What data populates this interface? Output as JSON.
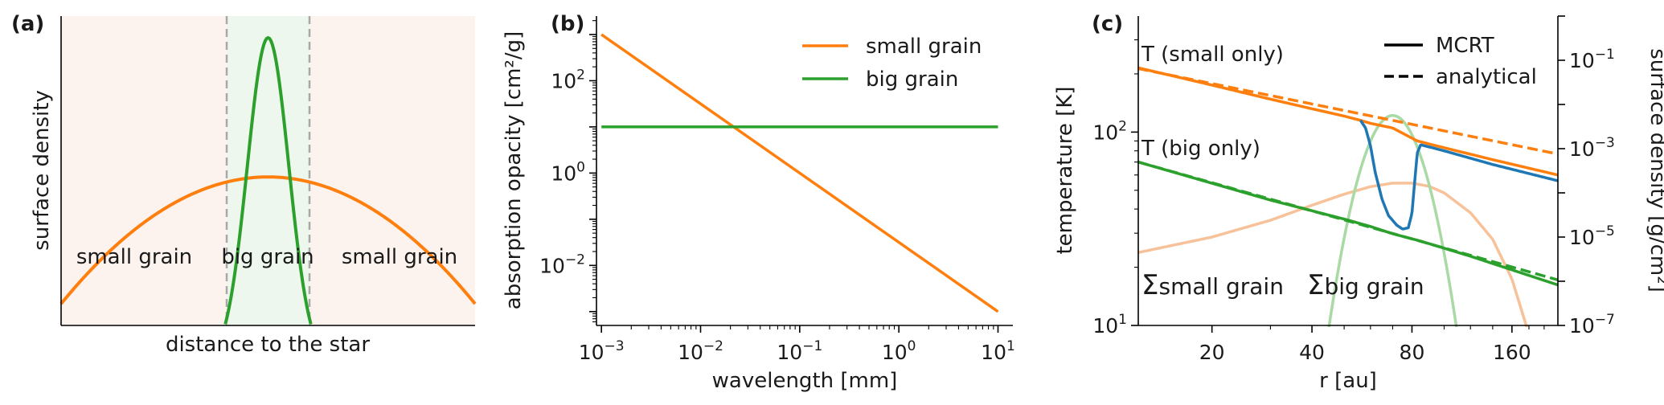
{
  "colors": {
    "orange": "#ff7f0e",
    "green": "#2ca02c",
    "blue": "#1f77b4",
    "light_orange": "#f7c29a",
    "light_green": "#a9d9a4",
    "shade_orange": "#fdf3ee",
    "shade_green": "#eef7ee",
    "vline": "#a8a8a8"
  },
  "chart_data": [
    {
      "panel": "(a)",
      "type": "line",
      "title": "",
      "xlabel": "distance to the star",
      "ylabel": "surface density",
      "xticks": "none",
      "yticks": "none",
      "xlim": [
        0,
        1
      ],
      "ylim": [
        0,
        1
      ],
      "vlines": [
        0.4,
        0.6
      ],
      "regions": [
        {
          "label": "small grain",
          "x_center": 0.18
        },
        {
          "label": "big grain",
          "x_center": 0.5
        },
        {
          "label": "small grain",
          "x_center": 0.82
        }
      ],
      "series": [
        {
          "name": "small grain",
          "color": "orange",
          "shape": "parabola",
          "peak_x": 0.5,
          "peak_y": 0.48,
          "edge_y": 0.07
        },
        {
          "name": "big grain",
          "color": "green",
          "shape": "gaussian",
          "peak_x": 0.5,
          "peak_y": 0.93,
          "sigma": 0.05,
          "floor_y": -0.12
        }
      ]
    },
    {
      "panel": "(b)",
      "type": "line",
      "title": "",
      "xlabel": "wavelength [mm]",
      "ylabel": "absorption opacity [cm²/g]",
      "xscale": "log",
      "yscale": "log",
      "xlim_log10": [
        -3.05,
        1.15
      ],
      "ylim_log10": [
        -3.3,
        3.4
      ],
      "xtick_labels": [
        {
          "base": "10",
          "exp": "−3",
          "log10": -3
        },
        {
          "base": "10",
          "exp": "−2",
          "log10": -2
        },
        {
          "base": "10",
          "exp": "−1",
          "log10": -1
        },
        {
          "base": "10",
          "exp": "0",
          "log10": 0
        },
        {
          "base": "10",
          "exp": "1",
          "log10": 1
        }
      ],
      "ytick_labels": [
        {
          "base": "10",
          "exp": "−2",
          "log10": -2
        },
        {
          "base": "10",
          "exp": "0",
          "log10": 0
        },
        {
          "base": "10",
          "exp": "2",
          "log10": 2
        }
      ],
      "series": [
        {
          "name": "small grain",
          "color": "orange",
          "x_log10": [
            -3,
            1
          ],
          "y_log10": [
            3.0,
            -3.0
          ]
        },
        {
          "name": "big grain",
          "color": "green",
          "x_log10": [
            -3,
            1
          ],
          "y_log10": [
            1.0,
            1.0
          ]
        }
      ],
      "legend": [
        "small grain",
        "big grain"
      ],
      "legend_position": "top-right"
    },
    {
      "panel": "(c)",
      "type": "line",
      "title": "",
      "xlabel": "r [au]",
      "ylabel": "temperature [K]",
      "ylabel_right": "surface density [g/cm²]",
      "xscale": "log",
      "yscale": "log",
      "xlim_au": [
        12,
        220
      ],
      "ylim_K_log10": [
        1.0,
        2.6
      ],
      "ylim_right_log10": [
        -7,
        0
      ],
      "xtick_labels": [
        "20",
        "40",
        "80",
        "160"
      ],
      "xtick_values": [
        20,
        40,
        80,
        160
      ],
      "ytick_labels": [
        {
          "base": "10",
          "exp": "1",
          "log10": 1
        },
        {
          "base": "10",
          "exp": "2",
          "log10": 2
        }
      ],
      "ytick_right_labels": [
        {
          "base": "10",
          "exp": "−1",
          "log10": -1
        },
        {
          "base": "10",
          "exp": "−3",
          "log10": -3
        },
        {
          "base": "10",
          "exp": "−5",
          "log10": -5
        },
        {
          "base": "10",
          "exp": "−7",
          "log10": -7
        }
      ],
      "annotations": {
        "t_small": "T (small only)",
        "t_big": "T (big only)",
        "sigma_small": "small grain",
        "sigma_big": "big grain",
        "sigma_symbol": "Σ"
      },
      "legend": [
        "MCRT",
        "analytical"
      ],
      "legend_position": "top-right",
      "series": [
        {
          "name": "T small analytical",
          "color": "orange",
          "style": "dashed",
          "r": [
            12,
            220
          ],
          "T": [
            213,
            77
          ]
        },
        {
          "name": "T small MCRT",
          "color": "orange",
          "style": "solid",
          "r": [
            12,
            20,
            30,
            40,
            50,
            56,
            60,
            70,
            83,
            100,
            140,
            220
          ],
          "T": [
            215,
            175,
            148,
            132,
            121,
            115,
            111,
            105,
            90,
            83,
            72,
            60
          ]
        },
        {
          "name": "T big analytical",
          "color": "green",
          "style": "dashed",
          "r": [
            12,
            220
          ],
          "T": [
            70,
            17.2
          ]
        },
        {
          "name": "T big MCRT",
          "color": "green",
          "style": "solid",
          "r": [
            12,
            30,
            50,
            60,
            70,
            85,
            120,
            220
          ],
          "T": [
            70,
            44.5,
            35.5,
            32.5,
            29.8,
            27.3,
            22.8,
            16.2
          ]
        },
        {
          "name": "T MCRT combined",
          "color": "blue",
          "style": "solid",
          "r": [
            56,
            58,
            60,
            62,
            65,
            68,
            72,
            75,
            78,
            80,
            81.5,
            83,
            85,
            100,
            140,
            220
          ],
          "T": [
            115,
            105,
            85,
            62,
            45,
            37,
            33,
            31.5,
            32,
            38,
            55,
            78,
            86,
            80,
            68,
            56
          ]
        },
        {
          "name": "Sigma small grain",
          "color": "light_orange",
          "style": "solid",
          "r": [
            12,
            20,
            30,
            40,
            50,
            60,
            70,
            80,
            90,
            100,
            120,
            140,
            160,
            180
          ],
          "sigma_log10": [
            -5.35,
            -5.0,
            -4.62,
            -4.28,
            -4.03,
            -3.86,
            -3.78,
            -3.78,
            -3.85,
            -4.0,
            -4.45,
            -5.05,
            -5.95,
            -7.2
          ]
        },
        {
          "name": "Sigma big grain",
          "color": "light_green",
          "style": "solid",
          "gauss_center_r": 70,
          "gauss_peak_log10": -2.25,
          "gauss_sigma_log10r": 0.05
        }
      ]
    }
  ]
}
